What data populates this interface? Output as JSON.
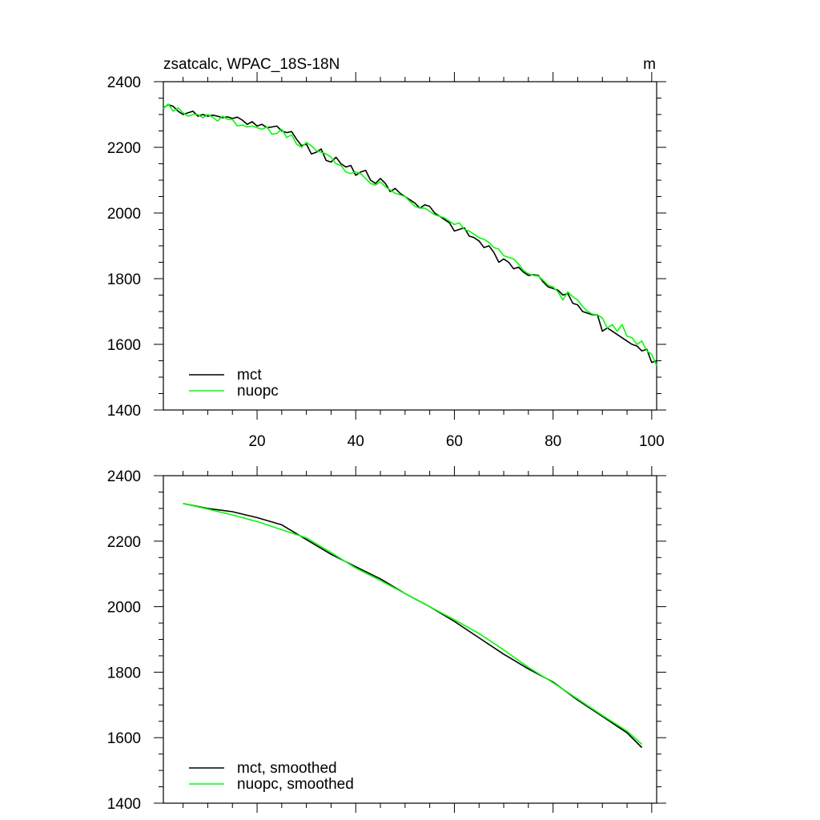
{
  "chart_data": [
    {
      "type": "line",
      "title": "zsatcalc, WPAC_18S-18N",
      "units": "m",
      "xlim": [
        1,
        101
      ],
      "ylim": [
        1400,
        2400
      ],
      "x_ticks": [
        20,
        40,
        60,
        80,
        100
      ],
      "x_ticks_labeled": true,
      "y_ticks": [
        1400,
        1600,
        1800,
        2000,
        2200,
        2400
      ],
      "legend_position": "bottom-left",
      "series": [
        {
          "name": "mct",
          "color": "#000000",
          "values": [
            2320,
            2330,
            2325,
            2310,
            2300,
            2305,
            2310,
            2295,
            2300,
            2295,
            2298,
            2295,
            2290,
            2293,
            2288,
            2292,
            2283,
            2270,
            2278,
            2265,
            2270,
            2260,
            2262,
            2265,
            2250,
            2245,
            2248,
            2225,
            2205,
            2210,
            2180,
            2185,
            2195,
            2160,
            2155,
            2170,
            2150,
            2140,
            2145,
            2115,
            2125,
            2130,
            2100,
            2090,
            2105,
            2090,
            2065,
            2075,
            2060,
            2050,
            2040,
            2030,
            2015,
            2025,
            2020,
            2000,
            1990,
            1980,
            1970,
            1945,
            1950,
            1955,
            1930,
            1925,
            1915,
            1895,
            1900,
            1880,
            1850,
            1860,
            1850,
            1830,
            1835,
            1820,
            1810,
            1812,
            1810,
            1790,
            1775,
            1770,
            1765,
            1750,
            1755,
            1725,
            1720,
            1700,
            1695,
            1690,
            1690,
            1640,
            1650,
            1640,
            1630,
            1620,
            1610,
            1600,
            1595,
            1580,
            1585,
            1545,
            1550
          ]
        },
        {
          "name": "nuopc",
          "color": "#00ff00",
          "values": [
            2318,
            2332,
            2310,
            2320,
            2305,
            2295,
            2300,
            2300,
            2290,
            2300,
            2292,
            2280,
            2295,
            2285,
            2285,
            2265,
            2268,
            2262,
            2265,
            2260,
            2255,
            2262,
            2240,
            2242,
            2255,
            2230,
            2238,
            2210,
            2200,
            2215,
            2205,
            2190,
            2185,
            2180,
            2170,
            2150,
            2145,
            2125,
            2120,
            2125,
            2120,
            2105,
            2090,
            2085,
            2095,
            2080,
            2070,
            2060,
            2055,
            2050,
            2035,
            2020,
            2015,
            2015,
            2005,
            1995,
            1990,
            1985,
            1975,
            1965,
            1970,
            1950,
            1945,
            1935,
            1925,
            1920,
            1910,
            1895,
            1890,
            1870,
            1865,
            1860,
            1845,
            1825,
            1815,
            1810,
            1808,
            1795,
            1780,
            1775,
            1760,
            1735,
            1760,
            1745,
            1735,
            1715,
            1700,
            1692,
            1690,
            1680,
            1650,
            1660,
            1640,
            1660,
            1625,
            1620,
            1600,
            1610,
            1580,
            1570,
            1535
          ]
        }
      ]
    },
    {
      "type": "line",
      "xlim": [
        1,
        101
      ],
      "ylim": [
        1400,
        2400
      ],
      "x_ticks": [
        20,
        40,
        60,
        80,
        100
      ],
      "x_ticks_labeled": false,
      "y_ticks": [
        1400,
        1600,
        1800,
        2000,
        2200,
        2400
      ],
      "legend_position": "bottom-left",
      "series": [
        {
          "name": "mct, smoothed",
          "color": "#000000",
          "x": [
            5,
            10,
            15,
            20,
            25,
            30,
            35,
            40,
            45,
            50,
            55,
            60,
            65,
            70,
            75,
            80,
            85,
            90,
            95,
            98
          ],
          "values": [
            2315,
            2300,
            2290,
            2272,
            2250,
            2205,
            2160,
            2122,
            2085,
            2040,
            2000,
            1955,
            1905,
            1855,
            1810,
            1770,
            1715,
            1665,
            1615,
            1570
          ]
        },
        {
          "name": "nuopc, smoothed",
          "color": "#00ff00",
          "x": [
            5,
            10,
            15,
            20,
            25,
            30,
            35,
            40,
            45,
            50,
            55,
            60,
            65,
            70,
            75,
            80,
            85,
            90,
            95,
            98
          ],
          "values": [
            2315,
            2298,
            2280,
            2260,
            2235,
            2210,
            2165,
            2118,
            2080,
            2040,
            2000,
            1960,
            1918,
            1868,
            1815,
            1768,
            1718,
            1668,
            1620,
            1580
          ]
        }
      ]
    }
  ]
}
